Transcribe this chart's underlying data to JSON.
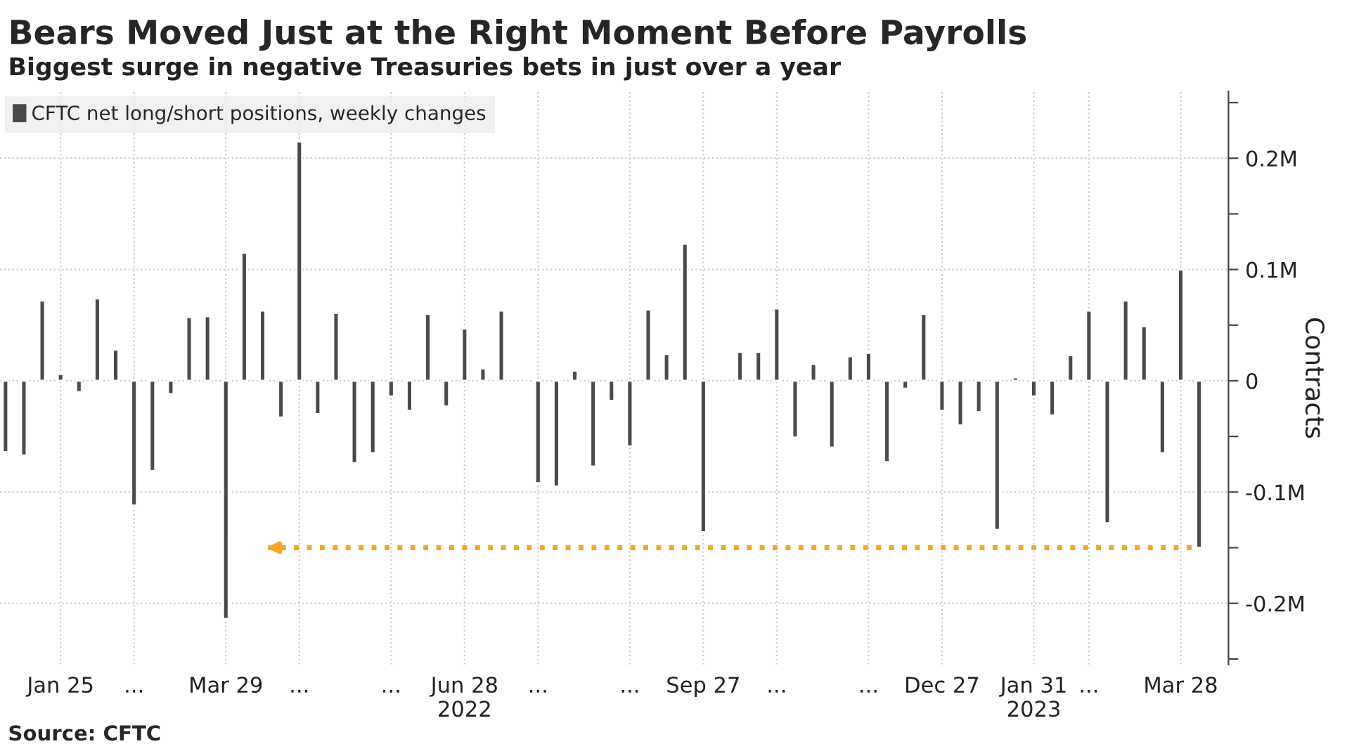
{
  "chart_data": {
    "type": "bar",
    "title": "Bears Moved Just at the Right Moment Before Payrolls",
    "subtitle": "Biggest surge in negative Treasuries bets in just over a year",
    "ylabel": "Contracts",
    "categories": [
      null,
      null,
      null,
      "Jan 25",
      null,
      null,
      null,
      "...",
      null,
      null,
      null,
      null,
      "Mar 29",
      null,
      null,
      null,
      "...",
      null,
      null,
      null,
      null,
      "...",
      null,
      null,
      null,
      "Jun 28\n2022",
      null,
      null,
      null,
      "...",
      null,
      null,
      null,
      null,
      "...",
      null,
      null,
      null,
      "Sep 27",
      null,
      null,
      null,
      "...",
      null,
      null,
      null,
      null,
      "...",
      null,
      null,
      null,
      "Dec 27",
      null,
      null,
      null,
      null,
      "Jan 31\n2023",
      null,
      null,
      "...",
      null,
      null,
      null,
      null,
      "Mar 28",
      null
    ],
    "series": [
      {
        "name": "CFTC net long/short positions, weekly changes",
        "color": "#4a4a4a",
        "values": [
          -64000,
          -67000,
          72000,
          6000,
          -10000,
          74000,
          28000,
          -112000,
          -81000,
          -12000,
          57000,
          58000,
          -214000,
          115000,
          63000,
          -33000,
          215000,
          -30000,
          61000,
          -74000,
          -65000,
          -14000,
          -27000,
          60000,
          -23000,
          47000,
          11000,
          63000,
          null,
          -92000,
          -95000,
          9000,
          -77000,
          -18000,
          -59000,
          64000,
          24000,
          123000,
          -136000,
          null,
          26000,
          26000,
          65000,
          -51000,
          15000,
          -60000,
          22000,
          25000,
          -73000,
          -7000,
          60000,
          -27000,
          -40000,
          -28000,
          -134000,
          3000,
          -14000,
          -31000,
          23000,
          63000,
          -128000,
          72000,
          49000,
          -65000,
          100000,
          -150000
        ]
      }
    ],
    "ylim": [
      -255000,
      260000
    ],
    "yticks": [
      {
        "value": -250000,
        "label": null
      },
      {
        "value": -200000,
        "label": "-0.2M"
      },
      {
        "value": -150000,
        "label": null
      },
      {
        "value": -100000,
        "label": "-0.1M"
      },
      {
        "value": -50000,
        "label": null
      },
      0,
      {
        "value": 50000,
        "label": null
      },
      {
        "value": 100000,
        "label": "0.1M"
      },
      {
        "value": 150000,
        "label": null
      },
      {
        "value": 200000,
        "label": "0.2M"
      },
      {
        "value": 250000,
        "label": null
      }
    ],
    "ref_lines": [
      {
        "axis": "y",
        "value": -150000,
        "color": "#f5a623",
        "line_style": "dotted"
      }
    ],
    "annotations": [
      "Source: CFTC"
    ],
    "grid": true,
    "legend": "top left"
  }
}
